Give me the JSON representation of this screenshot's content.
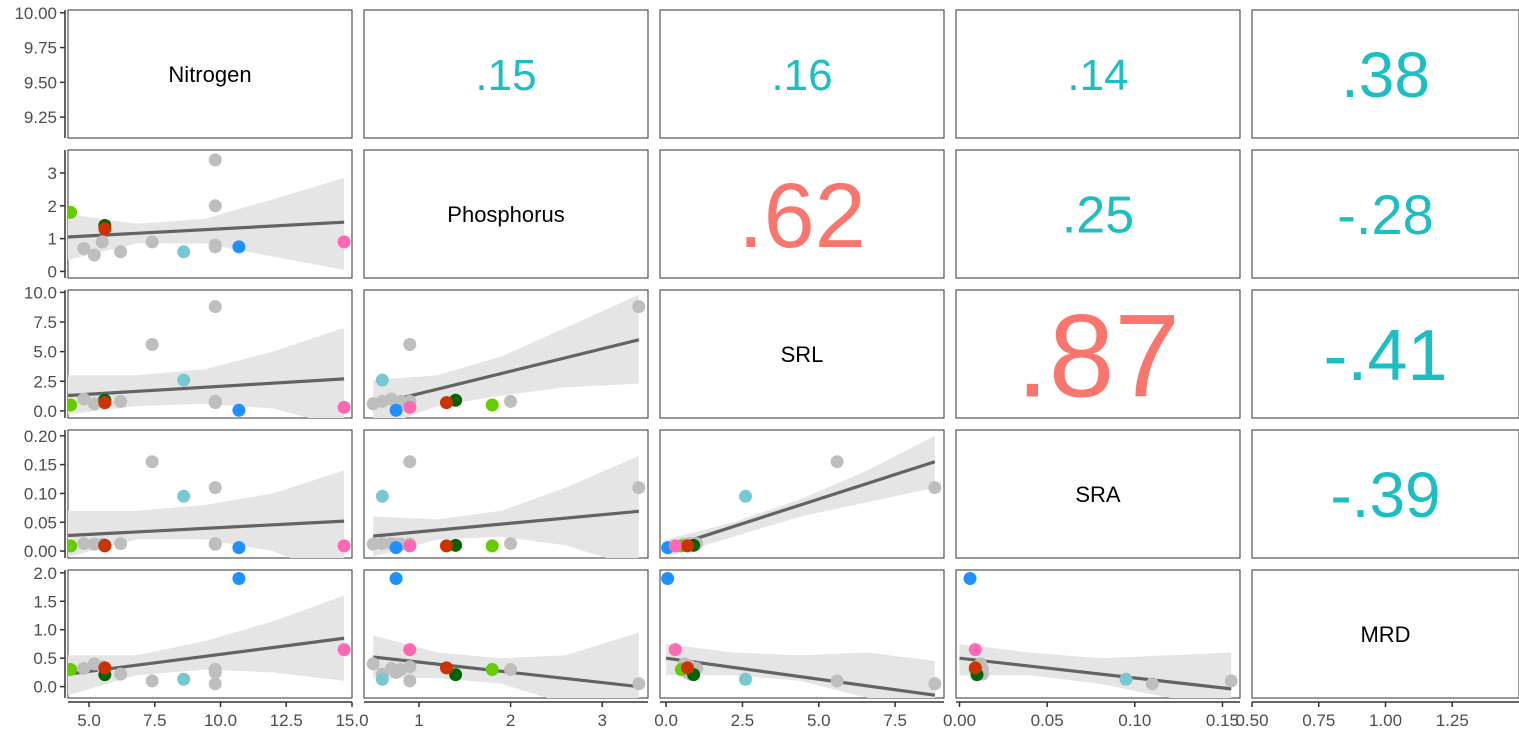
{
  "chart_data": {
    "type": "scatter",
    "variables": [
      "Nitrogen",
      "Phosphorus",
      "SRL",
      "SRA",
      "MRD"
    ],
    "colors": {
      "positive_strong": "#F8766D",
      "correlation_default": "#1DBDC4",
      "fit_line": "#636363",
      "ribbon": "#E5E5E5",
      "points": [
        "#BEBEBE",
        "#BEBEBE",
        "#BEBEBE",
        "#BEBEBE",
        "#BEBEBE",
        "#BEBEBE",
        "#BEBEBE",
        "#BEBEBE",
        "#BEBEBE",
        "#66CC00",
        "#006400",
        "#CC3300",
        "#78C8D2",
        "#1E90FF",
        "#FF69B4"
      ]
    },
    "correlations": [
      {
        "row": 0,
        "col": 1,
        "label": ".15",
        "color": "#1DBDC4"
      },
      {
        "row": 0,
        "col": 2,
        "label": ".16",
        "color": "#1DBDC4"
      },
      {
        "row": 0,
        "col": 3,
        "label": ".14",
        "color": "#1DBDC4"
      },
      {
        "row": 0,
        "col": 4,
        "label": ".38",
        "color": "#1DBDC4"
      },
      {
        "row": 1,
        "col": 2,
        "label": ".62",
        "color": "#F8766D"
      },
      {
        "row": 1,
        "col": 3,
        "label": ".25",
        "color": "#1DBDC4"
      },
      {
        "row": 1,
        "col": 4,
        "label": "-.28",
        "color": "#1DBDC4"
      },
      {
        "row": 2,
        "col": 3,
        "label": ".87",
        "color": "#F8766D"
      },
      {
        "row": 2,
        "col": 4,
        "label": "-.41",
        "color": "#1DBDC4"
      },
      {
        "row": 3,
        "col": 4,
        "label": "-.39",
        "color": "#1DBDC4"
      }
    ],
    "axes": {
      "x": [
        {
          "min": 4.2,
          "max": 15.0,
          "ticks": [
            5.0,
            7.5,
            10.0,
            12.5,
            15.0
          ],
          "tick_labels": [
            "5.0",
            "7.5",
            "10.0",
            "12.5",
            "15.0"
          ]
        },
        {
          "min": 0.4,
          "max": 3.5,
          "ticks": [
            1,
            2,
            3
          ],
          "tick_labels": [
            "1",
            "2",
            "3"
          ]
        },
        {
          "min": -0.2,
          "max": 9.1,
          "ticks": [
            0.0,
            2.5,
            5.0,
            7.5
          ],
          "tick_labels": [
            "0.0",
            "2.5",
            "5.0",
            "7.5"
          ]
        },
        {
          "min": -0.002,
          "max": 0.16,
          "ticks": [
            0.0,
            0.05,
            0.1,
            0.15
          ],
          "tick_labels": [
            "0.00",
            "0.05",
            "0.10",
            "0.15"
          ]
        },
        {
          "min": 0.5,
          "max": 1.5,
          "ticks": [
            0.5,
            0.75,
            1.0,
            1.25
          ],
          "tick_labels": [
            "0.50",
            "0.75",
            "1.00",
            "1.25"
          ]
        }
      ],
      "y": [
        {
          "min": 9.1,
          "max": 10.02,
          "ticks": [
            9.25,
            9.5,
            9.75,
            10.0
          ],
          "tick_labels": [
            "9.25",
            "9.50",
            "9.75",
            "10.00"
          ]
        },
        {
          "min": -0.2,
          "max": 3.7,
          "ticks": [
            0,
            1,
            2,
            3
          ],
          "tick_labels": [
            "0",
            "1",
            "2",
            "3"
          ]
        },
        {
          "min": -0.6,
          "max": 10.2,
          "ticks": [
            0.0,
            2.5,
            5.0,
            7.5,
            10.0
          ],
          "tick_labels": [
            "0.0",
            "2.5",
            "5.0",
            "7.5",
            "10.0"
          ]
        },
        {
          "min": -0.012,
          "max": 0.21,
          "ticks": [
            0.0,
            0.05,
            0.1,
            0.15,
            0.2
          ],
          "tick_labels": [
            "0.00",
            "0.05",
            "0.10",
            "0.15",
            "0.20"
          ]
        },
        {
          "min": -0.2,
          "max": 2.05,
          "ticks": [
            0.0,
            0.5,
            1.0,
            1.5,
            2.0
          ],
          "tick_labels": [
            "0.0",
            "0.5",
            "1.0",
            "1.5",
            "2.0"
          ]
        }
      ]
    },
    "observations": {
      "Nitrogen": [
        4.8,
        5.2,
        5.5,
        6.2,
        7.4,
        9.8,
        9.8,
        9.8,
        9.8,
        4.3,
        5.6,
        5.6,
        8.6,
        10.7,
        14.7
      ],
      "Phosphorus": [
        0.7,
        0.5,
        0.9,
        0.6,
        0.9,
        3.4,
        2.0,
        0.8,
        0.75,
        1.8,
        1.4,
        1.3,
        0.6,
        0.75,
        0.9
      ],
      "SRL": [
        1.0,
        0.6,
        0.8,
        0.8,
        5.6,
        8.8,
        0.8,
        0.8,
        0.7,
        0.5,
        0.9,
        0.7,
        2.6,
        0.05,
        0.3
      ],
      "SRA": [
        0.013,
        0.012,
        0.012,
        0.013,
        0.155,
        0.11,
        0.013,
        0.012,
        0.012,
        0.009,
        0.01,
        0.009,
        0.095,
        0.006,
        0.009
      ],
      "MRD": [
        0.32,
        0.4,
        0.35,
        0.22,
        0.1,
        0.05,
        0.3,
        0.3,
        0.25,
        0.3,
        0.21,
        0.33,
        0.13,
        1.9,
        0.65
      ]
    },
    "fits": [
      {
        "row": 1,
        "col": 0,
        "x": [
          4.2,
          14.7
        ],
        "y": [
          1.05,
          1.5
        ],
        "ribbon_x": [
          4.2,
          6.8,
          9.4,
          12.0,
          14.7
        ],
        "ribbon_lo": [
          0.35,
          0.85,
          0.85,
          0.45,
          0.05
        ],
        "ribbon_hi": [
          1.75,
          1.45,
          1.6,
          2.2,
          2.85
        ]
      },
      {
        "row": 2,
        "col": 0,
        "x": [
          4.2,
          14.7
        ],
        "y": [
          1.3,
          2.7
        ],
        "ribbon_x": [
          4.2,
          6.8,
          9.4,
          12.0,
          14.7
        ],
        "ribbon_lo": [
          -0.3,
          0.4,
          0.6,
          0.2,
          -1.4
        ],
        "ribbon_hi": [
          3.0,
          3.0,
          3.5,
          5.0,
          7.0
        ]
      },
      {
        "row": 2,
        "col": 1,
        "x": [
          0.5,
          3.4
        ],
        "y": [
          0.5,
          6.0
        ],
        "ribbon_x": [
          0.5,
          1.2,
          1.9,
          2.6,
          3.4
        ],
        "ribbon_lo": [
          -1.6,
          0.4,
          1.3,
          2.0,
          2.3
        ],
        "ribbon_hi": [
          2.6,
          3.0,
          4.6,
          7.0,
          9.8
        ]
      },
      {
        "row": 3,
        "col": 0,
        "x": [
          4.2,
          14.7
        ],
        "y": [
          0.027,
          0.052
        ],
        "ribbon_x": [
          4.2,
          6.8,
          9.4,
          12.0,
          14.7
        ],
        "ribbon_lo": [
          -0.01,
          0.02,
          0.02,
          0.0,
          -0.05
        ],
        "ribbon_hi": [
          0.07,
          0.07,
          0.08,
          0.1,
          0.14
        ]
      },
      {
        "row": 3,
        "col": 1,
        "x": [
          0.5,
          3.4
        ],
        "y": [
          0.026,
          0.069
        ],
        "ribbon_x": [
          0.5,
          1.2,
          1.9,
          2.6,
          3.4
        ],
        "ribbon_lo": [
          -0.01,
          0.02,
          0.025,
          0.01,
          -0.03
        ],
        "ribbon_hi": [
          0.06,
          0.055,
          0.07,
          0.11,
          0.165
        ]
      },
      {
        "row": 3,
        "col": 2,
        "x": [
          0.0,
          8.8
        ],
        "y": [
          0.005,
          0.155
        ],
        "ribbon_x": [
          0.0,
          2.2,
          4.4,
          6.6,
          8.8
        ],
        "ribbon_lo": [
          -0.01,
          0.025,
          0.06,
          0.085,
          0.11
        ],
        "ribbon_hi": [
          0.02,
          0.05,
          0.09,
          0.14,
          0.2
        ]
      },
      {
        "row": 4,
        "col": 0,
        "x": [
          4.2,
          14.7
        ],
        "y": [
          0.22,
          0.85
        ],
        "ribbon_x": [
          4.2,
          6.8,
          9.4,
          12.0,
          14.7
        ],
        "ribbon_lo": [
          -0.15,
          0.2,
          0.3,
          0.25,
          0.1
        ],
        "ribbon_hi": [
          0.55,
          0.55,
          0.8,
          1.15,
          1.6
        ]
      },
      {
        "row": 4,
        "col": 1,
        "x": [
          0.5,
          3.4
        ],
        "y": [
          0.52,
          0.0
        ],
        "ribbon_x": [
          0.5,
          1.2,
          1.9,
          2.6,
          3.4
        ],
        "ribbon_lo": [
          0.15,
          0.15,
          0.05,
          -0.3,
          -0.65
        ],
        "ribbon_hi": [
          0.9,
          0.6,
          0.5,
          0.55,
          0.95
        ]
      },
      {
        "row": 4,
        "col": 2,
        "x": [
          0.0,
          8.8
        ],
        "y": [
          0.5,
          -0.15
        ],
        "ribbon_x": [
          0.0,
          2.2,
          4.4,
          6.6,
          8.8
        ],
        "ribbon_lo": [
          0.2,
          0.2,
          0.1,
          -0.2,
          -0.75
        ],
        "ribbon_hi": [
          0.75,
          0.6,
          0.55,
          0.6,
          0.45
        ]
      },
      {
        "row": 4,
        "col": 3,
        "x": [
          0.0,
          0.155
        ],
        "y": [
          0.5,
          -0.04
        ],
        "ribbon_x": [
          0.0,
          0.04,
          0.08,
          0.12,
          0.155
        ],
        "ribbon_lo": [
          0.2,
          0.2,
          0.05,
          -0.2,
          -0.5
        ],
        "ribbon_hi": [
          0.75,
          0.6,
          0.5,
          0.55,
          0.6
        ]
      }
    ]
  }
}
